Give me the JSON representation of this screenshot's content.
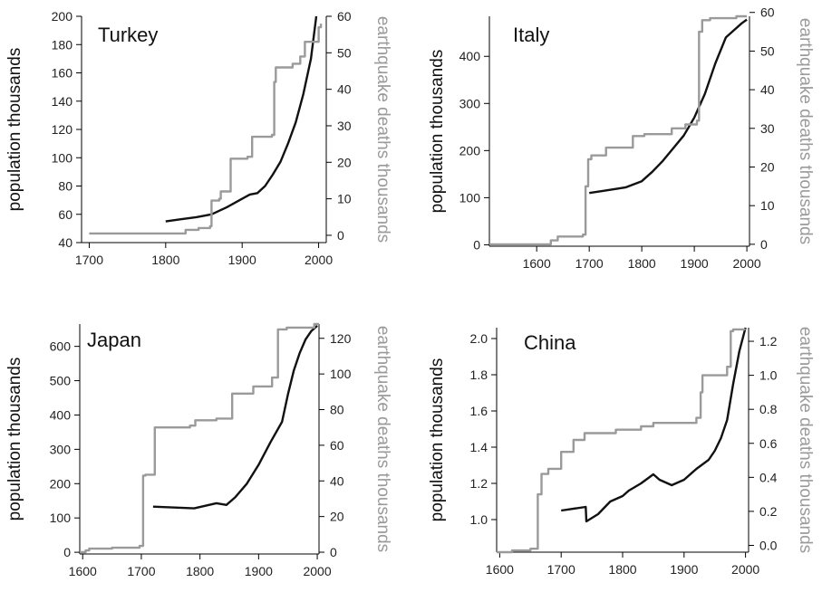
{
  "colors": {
    "population": "#111111",
    "deaths": "#9a9a9a",
    "axis": "#000000"
  },
  "chart_data": [
    {
      "type": "line",
      "title": "Turkey",
      "ylabel": "population thousands",
      "y2label": "earthquake deaths thousands",
      "xlim": [
        1690,
        2010
      ],
      "xticks": [
        1700,
        1800,
        1900,
        2000
      ],
      "ylim": [
        40,
        200
      ],
      "yticks": [
        40,
        60,
        80,
        100,
        120,
        140,
        160,
        180,
        200
      ],
      "y2lim": [
        -2,
        60
      ],
      "y2ticks": [
        0,
        10,
        20,
        30,
        40,
        50,
        60
      ],
      "series": [
        {
          "axis": "left",
          "step": false,
          "x": [
            1800,
            1820,
            1840,
            1860,
            1880,
            1900,
            1910,
            1920,
            1930,
            1940,
            1950,
            1960,
            1970,
            1980,
            1990,
            1997
          ],
          "values": [
            55,
            56.5,
            58,
            60,
            65,
            71,
            74,
            75,
            80,
            88,
            97,
            110,
            125,
            145,
            170,
            200
          ]
        },
        {
          "axis": "right",
          "step": true,
          "x": [
            1700,
            1784,
            1826,
            1843,
            1858,
            1860,
            1870,
            1872,
            1885,
            1907,
            1913,
            1939,
            1942,
            1944,
            1966,
            1976,
            1982,
            1997,
            2000,
            2003
          ],
          "values": [
            0.5,
            0.5,
            1.5,
            2,
            2.5,
            9.5,
            10,
            12,
            21,
            21.5,
            27,
            27.5,
            42,
            46,
            47,
            49,
            53,
            53,
            57,
            58
          ]
        }
      ]
    },
    {
      "type": "line",
      "title": "Italy",
      "ylabel": "population thousands",
      "y2label": "earthquake deaths thousands",
      "xlim": [
        1510,
        2005
      ],
      "xticks": [
        1600,
        1700,
        1800,
        1900,
        2000
      ],
      "ylim": [
        -3,
        485
      ],
      "yticks": [
        0,
        100,
        200,
        300,
        400
      ],
      "y2lim": [
        -0.5,
        59
      ],
      "y2ticks": [
        0,
        10,
        20,
        30,
        40,
        50,
        60
      ],
      "series": [
        {
          "axis": "left",
          "step": false,
          "x": [
            1700,
            1730,
            1770,
            1800,
            1820,
            1840,
            1860,
            1880,
            1900,
            1920,
            1940,
            1960,
            1980,
            1990,
            2000
          ],
          "values": [
            110,
            115,
            122,
            135,
            155,
            178,
            205,
            232,
            270,
            320,
            385,
            440,
            460,
            470,
            478
          ]
        },
        {
          "axis": "right",
          "step": true,
          "x": [
            1510,
            1627,
            1640,
            1688,
            1693,
            1698,
            1704,
            1732,
            1783,
            1805,
            1857,
            1883,
            1905,
            1909,
            1915,
            1930,
            1980,
            2000
          ],
          "values": [
            0,
            1,
            2,
            2.5,
            15,
            22,
            23,
            25,
            28,
            28.5,
            30,
            31,
            32,
            55,
            58,
            58.5,
            59,
            59
          ]
        }
      ]
    },
    {
      "type": "line",
      "title": "Japan",
      "ylabel": "population thousands",
      "y2label": "earthquake deaths thousands",
      "xlim": [
        1595,
        2003
      ],
      "xticks": [
        1600,
        1700,
        1800,
        1900,
        2000
      ],
      "ylim": [
        -5,
        665
      ],
      "yticks": [
        0,
        100,
        200,
        300,
        400,
        500,
        600
      ],
      "y2lim": [
        -1,
        128
      ],
      "y2ticks": [
        0,
        20,
        40,
        60,
        80,
        100,
        120
      ],
      "series": [
        {
          "axis": "left",
          "step": false,
          "x": [
            1720,
            1790,
            1828,
            1845,
            1860,
            1880,
            1900,
            1920,
            1940,
            1950,
            1960,
            1970,
            1980,
            1990,
            2000
          ],
          "values": [
            133,
            128,
            143,
            138,
            160,
            200,
            255,
            320,
            380,
            460,
            530,
            580,
            620,
            645,
            660
          ]
        },
        {
          "axis": "right",
          "step": true,
          "x": [
            1595,
            1605,
            1611,
            1650,
            1697,
            1703,
            1707,
            1723,
            1783,
            1792,
            1828,
            1855,
            1891,
            1923,
            1933,
            1948,
            1995,
            2003
          ],
          "values": [
            0,
            1,
            2,
            2.5,
            3.5,
            43,
            43.5,
            70,
            71,
            74,
            75,
            89,
            93,
            98,
            125,
            126,
            128,
            128
          ]
        }
      ]
    },
    {
      "type": "line",
      "title": "China",
      "ylabel": "population thousands",
      "y2label": "earthquake deaths thousands",
      "xlim": [
        1595,
        2005
      ],
      "xticks": [
        1600,
        1700,
        1800,
        1900,
        2000
      ],
      "ylim": [
        0.82,
        2.06
      ],
      "yticks": [
        1.0,
        1.2,
        1.4,
        1.6,
        1.8,
        2.0
      ],
      "y2lim": [
        -0.04,
        1.28
      ],
      "y2ticks": [
        0.0,
        0.2,
        0.4,
        0.6,
        0.8,
        1.0,
        1.2
      ],
      "series": [
        {
          "axis": "left",
          "step": false,
          "x": [
            1700,
            1740,
            1741,
            1760,
            1780,
            1800,
            1810,
            1830,
            1850,
            1860,
            1880,
            1900,
            1920,
            1940,
            1950,
            1960,
            1970,
            1980,
            1990,
            2000
          ],
          "values": [
            1.05,
            1.07,
            0.99,
            1.03,
            1.1,
            1.13,
            1.16,
            1.2,
            1.25,
            1.22,
            1.19,
            1.22,
            1.28,
            1.33,
            1.38,
            1.45,
            1.55,
            1.75,
            1.93,
            2.06
          ]
        },
        {
          "axis": "right",
          "step": true,
          "x": [
            1595,
            1620,
            1650,
            1662,
            1668,
            1679,
            1700,
            1720,
            1738,
            1789,
            1830,
            1850,
            1920,
            1927,
            1930,
            1970,
            1976,
            1980,
            2000
          ],
          "values": [
            -0.04,
            -0.03,
            -0.02,
            0.3,
            0.42,
            0.45,
            0.55,
            0.62,
            0.66,
            0.68,
            0.7,
            0.72,
            0.75,
            0.9,
            1.0,
            1.05,
            1.26,
            1.27,
            1.27
          ]
        }
      ]
    }
  ]
}
